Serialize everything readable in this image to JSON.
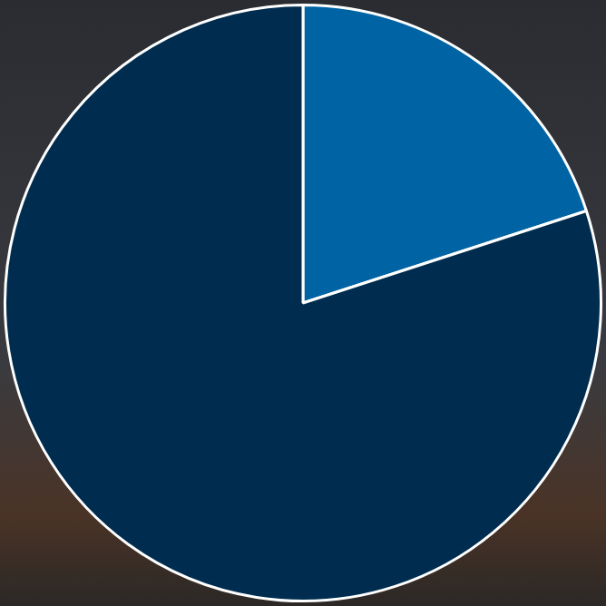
{
  "chart_data": {
    "type": "pie",
    "values": [
      20,
      80
    ],
    "colors": [
      "#0063a3",
      "#002d4f"
    ],
    "legend": false,
    "data_labels": false
  }
}
